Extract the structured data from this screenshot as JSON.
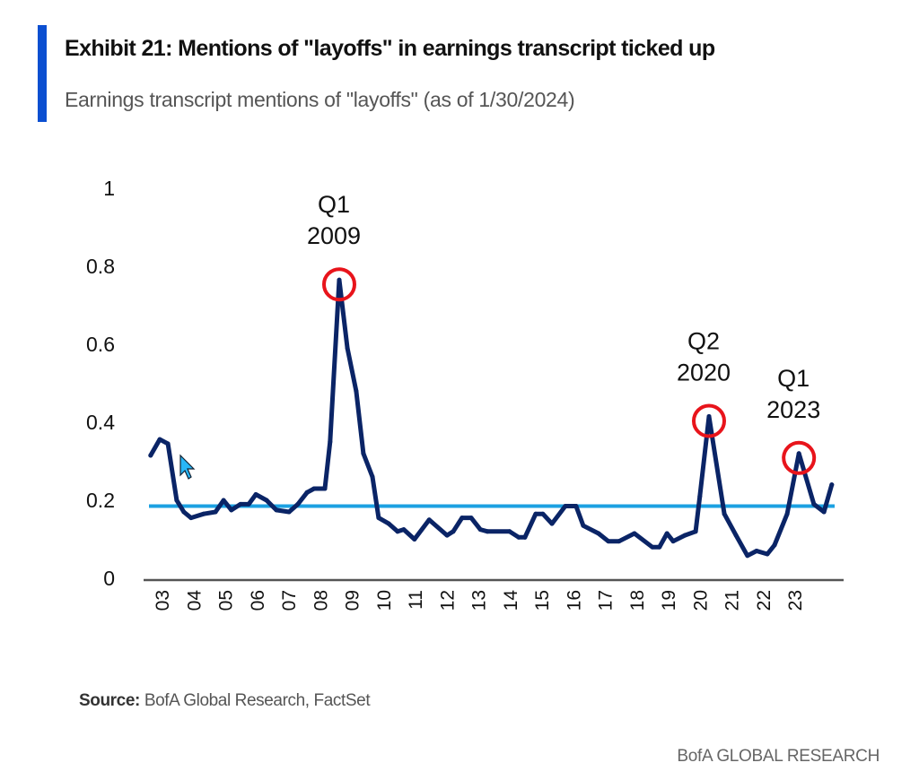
{
  "header": {
    "title": "Exhibit 21: Mentions of \"layoffs\" in earnings transcript ticked up",
    "subtitle": "Earnings transcript mentions of \"layoffs\" (as of 1/30/2024)"
  },
  "source": {
    "label": "Source:",
    "text": " BofA Global Research, FactSet"
  },
  "footer": "BofA GLOBAL RESEARCH",
  "colors": {
    "series": "#0a2466",
    "average_line": "#1ba1e2",
    "highlight": "#e8141b",
    "accent_bar": "#0b4fd1"
  },
  "chart_data": {
    "type": "line",
    "title": "",
    "xlabel": "",
    "ylabel": "",
    "ylim": [
      0,
      1
    ],
    "yticks": [
      "0",
      "0.2",
      "0.4",
      "0.6",
      "0.8",
      "1"
    ],
    "ytick_values": [
      0,
      0.2,
      0.4,
      0.6,
      0.8,
      1
    ],
    "xticks": [
      "03",
      "04",
      "05",
      "06",
      "07",
      "08",
      "09",
      "10",
      "11",
      "12",
      "13",
      "14",
      "15",
      "16",
      "17",
      "18",
      "19",
      "20",
      "21",
      "22",
      "23"
    ],
    "grid": false,
    "series": [
      {
        "points": [
          [
            2003.05,
            0.315
          ],
          [
            2003.33,
            0.356
          ],
          [
            2003.58,
            0.345
          ],
          [
            2003.85,
            0.2
          ],
          [
            2004.07,
            0.17
          ],
          [
            2004.29,
            0.155
          ],
          [
            2004.68,
            0.165
          ],
          [
            2005.04,
            0.17
          ],
          [
            2005.29,
            0.2
          ],
          [
            2005.53,
            0.175
          ],
          [
            2005.81,
            0.19
          ],
          [
            2006.06,
            0.19
          ],
          [
            2006.28,
            0.215
          ],
          [
            2006.61,
            0.2
          ],
          [
            2006.91,
            0.175
          ],
          [
            2007.3,
            0.17
          ],
          [
            2007.57,
            0.19
          ],
          [
            2007.85,
            0.22
          ],
          [
            2008.07,
            0.23
          ],
          [
            2008.4,
            0.23
          ],
          [
            2008.56,
            0.35
          ],
          [
            2008.84,
            0.765
          ],
          [
            2009.09,
            0.59
          ],
          [
            2009.36,
            0.48
          ],
          [
            2009.58,
            0.32
          ],
          [
            2009.86,
            0.26
          ],
          [
            2010.05,
            0.155
          ],
          [
            2010.36,
            0.14
          ],
          [
            2010.63,
            0.12
          ],
          [
            2010.82,
            0.125
          ],
          [
            2011.15,
            0.1
          ],
          [
            2011.6,
            0.15
          ],
          [
            2012.15,
            0.11
          ],
          [
            2012.34,
            0.12
          ],
          [
            2012.61,
            0.155
          ],
          [
            2012.89,
            0.155
          ],
          [
            2013.17,
            0.125
          ],
          [
            2013.39,
            0.12
          ],
          [
            2014.07,
            0.12
          ],
          [
            2014.35,
            0.105
          ],
          [
            2014.54,
            0.105
          ],
          [
            2014.87,
            0.165
          ],
          [
            2015.09,
            0.165
          ],
          [
            2015.37,
            0.14
          ],
          [
            2015.78,
            0.185
          ],
          [
            2016.11,
            0.185
          ],
          [
            2016.33,
            0.135
          ],
          [
            2016.8,
            0.115
          ],
          [
            2017.1,
            0.095
          ],
          [
            2017.43,
            0.095
          ],
          [
            2017.9,
            0.115
          ],
          [
            2018.45,
            0.08
          ],
          [
            2018.67,
            0.08
          ],
          [
            2018.9,
            0.115
          ],
          [
            2019.09,
            0.095
          ],
          [
            2019.45,
            0.11
          ],
          [
            2019.78,
            0.12
          ],
          [
            2019.91,
            0.21
          ],
          [
            2020.19,
            0.415
          ],
          [
            2020.66,
            0.165
          ],
          [
            2021.02,
            0.11
          ],
          [
            2021.37,
            0.058
          ],
          [
            2021.65,
            0.07
          ],
          [
            2021.98,
            0.062
          ],
          [
            2022.2,
            0.085
          ],
          [
            2022.59,
            0.165
          ],
          [
            2022.95,
            0.32
          ],
          [
            2023.41,
            0.19
          ],
          [
            2023.72,
            0.17
          ],
          [
            2023.96,
            0.24
          ]
        ]
      }
    ],
    "average_line": 0.185,
    "annotations": [
      {
        "line1": "Q1",
        "line2": "2009",
        "x": 2008.84,
        "y": 0.765
      },
      {
        "line1": "Q2",
        "line2": "2020",
        "x": 2020.19,
        "y": 0.415
      },
      {
        "line1": "Q1",
        "line2": "2023",
        "x": 2022.95,
        "y": 0.32
      }
    ]
  }
}
